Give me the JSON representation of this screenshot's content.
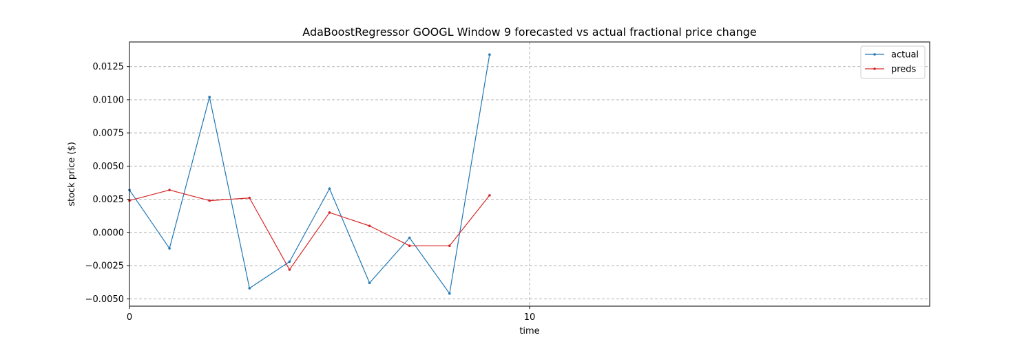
{
  "chart_data": {
    "type": "line",
    "title": "AdaBoostRegressor GOOGL Window 9 forecasted vs actual fractional price change",
    "xlabel": "time",
    "ylabel": "stock price ($)",
    "xlim": [
      0,
      20
    ],
    "ylim": [
      -0.00555,
      0.01435
    ],
    "xticks": [
      0,
      10
    ],
    "xtick_labels": [
      "0",
      "10"
    ],
    "yticks": [
      -0.005,
      -0.0025,
      0.0,
      0.0025,
      0.005,
      0.0075,
      0.01,
      0.0125
    ],
    "ytick_labels": [
      "−0.0050",
      "−0.0025",
      "0.0000",
      "0.0025",
      "0.0050",
      "0.0075",
      "0.0100",
      "0.0125"
    ],
    "grid": true,
    "legend_position": "top-right",
    "x": [
      0,
      1,
      2,
      3,
      4,
      5,
      6,
      7,
      8,
      9
    ],
    "series": [
      {
        "name": "actual",
        "color": "#1f77b4",
        "values": [
          0.0032,
          -0.0012,
          0.0102,
          -0.0042,
          -0.0022,
          0.0033,
          -0.0038,
          -0.0004,
          -0.0046,
          0.0134
        ]
      },
      {
        "name": "preds",
        "color": "#d62728",
        "values": [
          0.0024,
          0.0032,
          0.0024,
          0.0026,
          -0.0028,
          0.0015,
          0.0005,
          -0.001,
          -0.001,
          0.0028
        ]
      }
    ]
  }
}
